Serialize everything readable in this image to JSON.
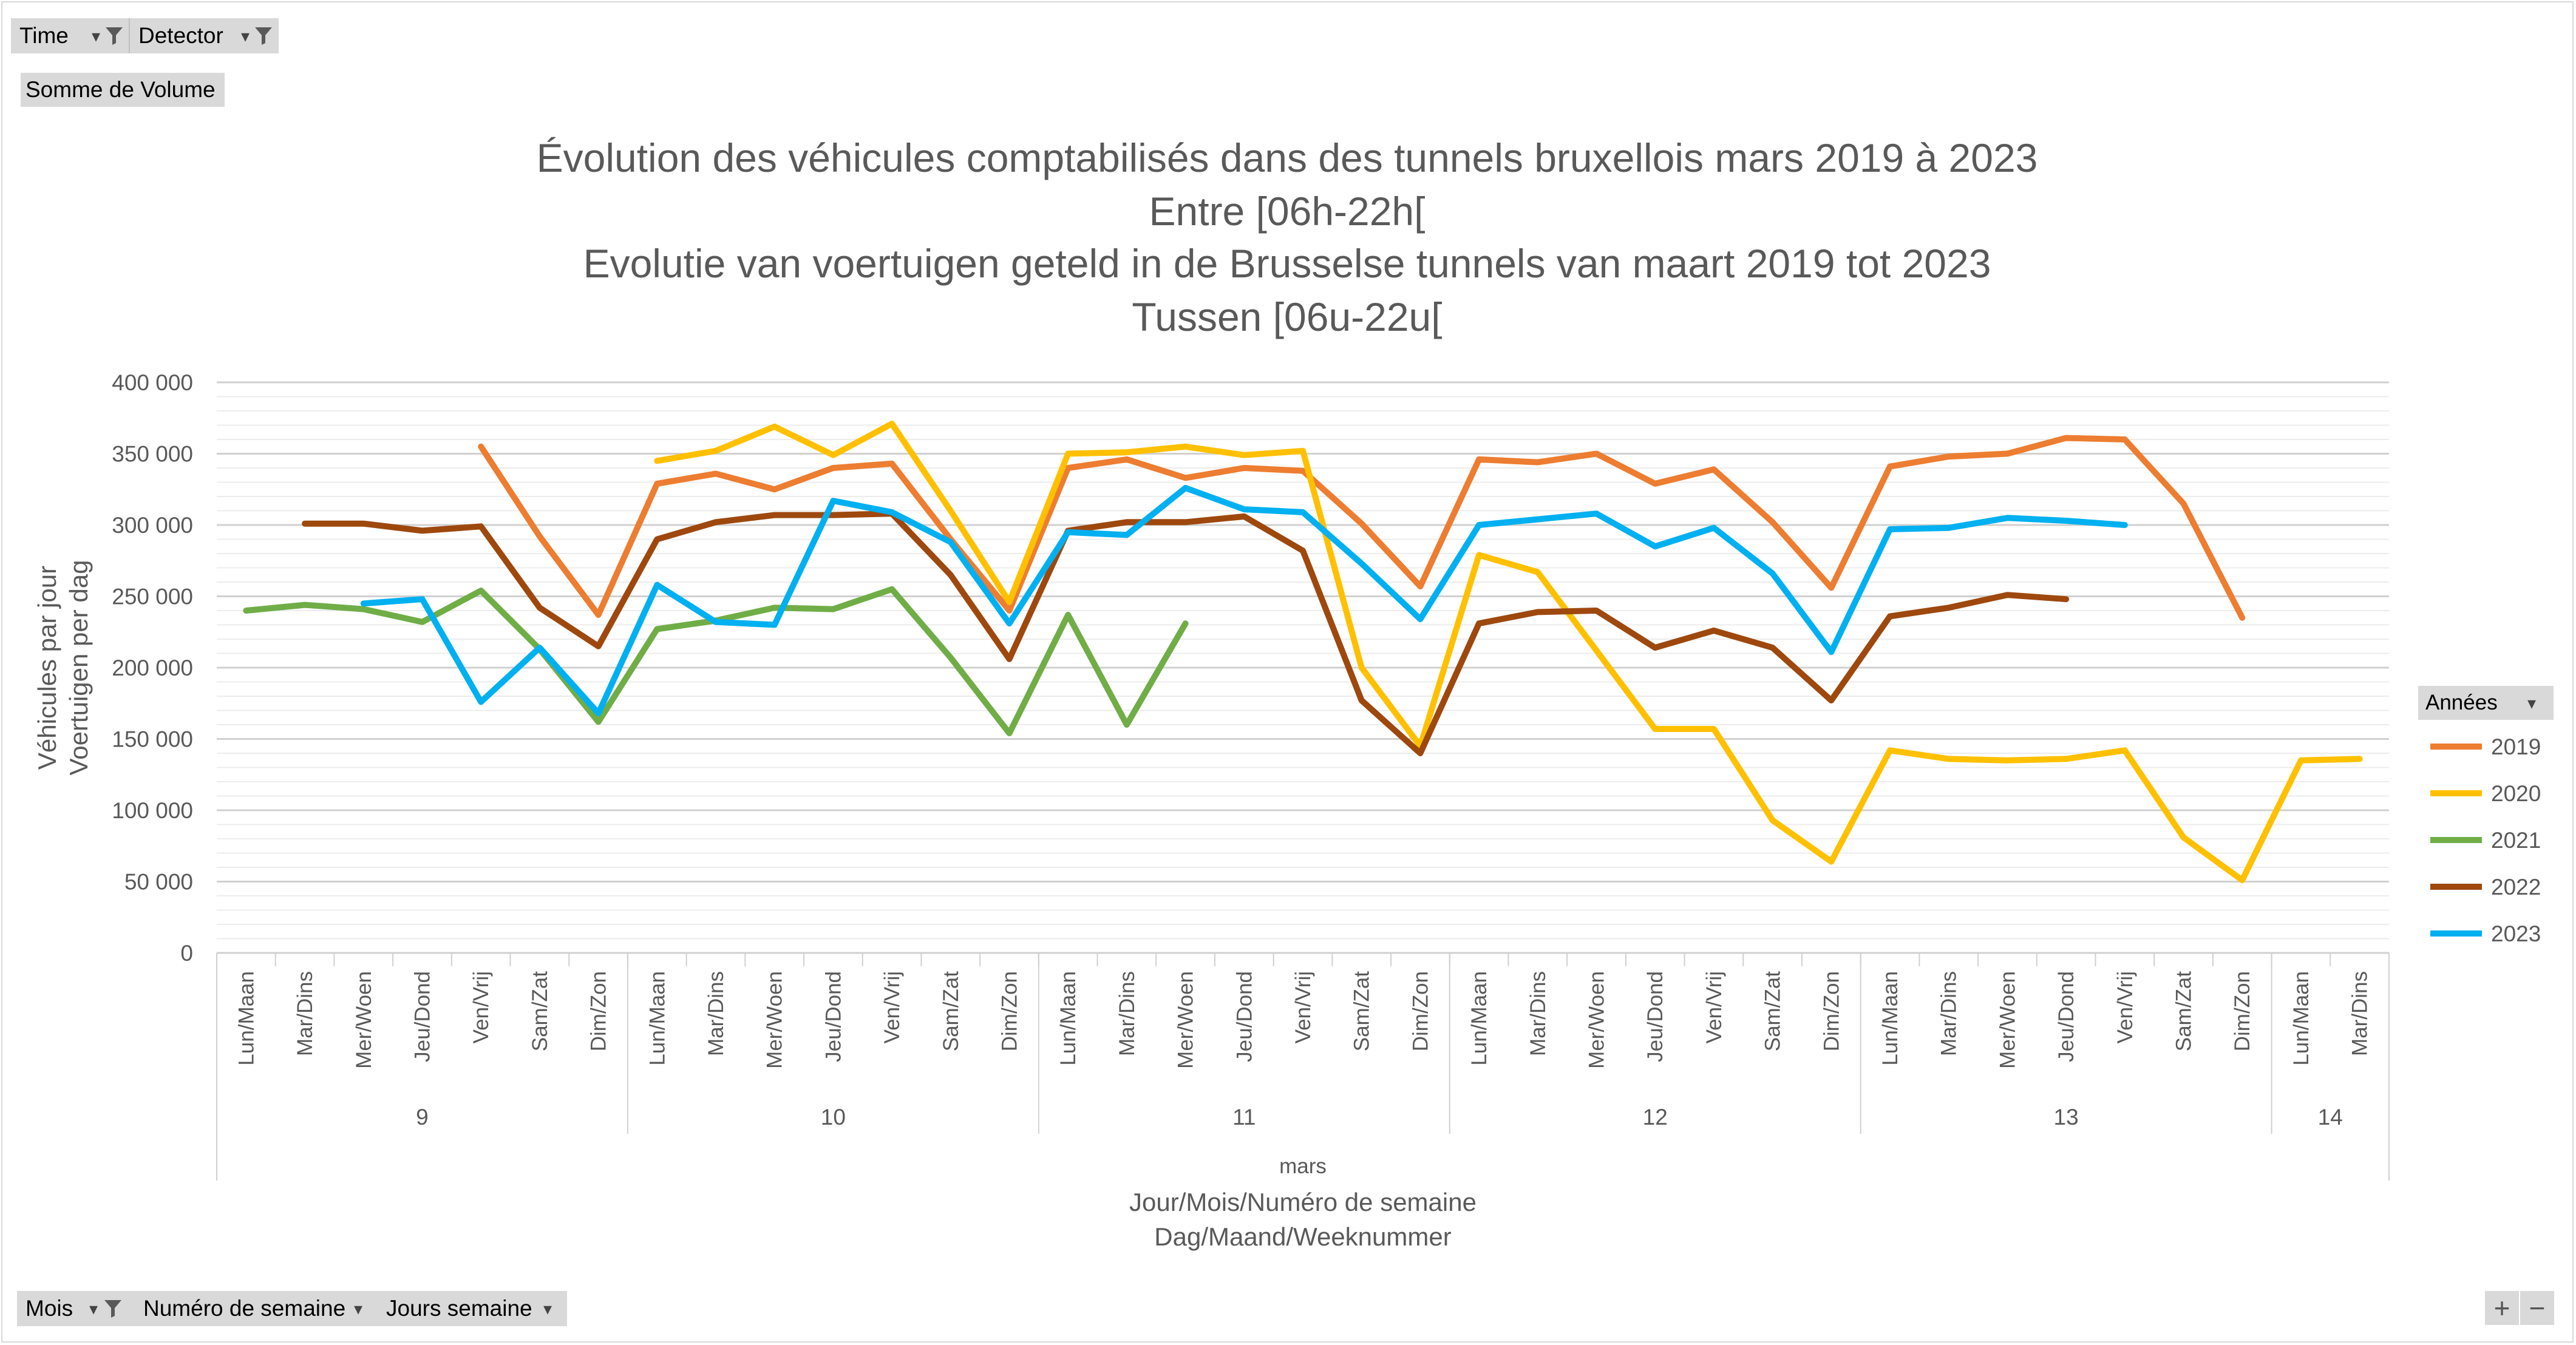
{
  "filters": {
    "time_label": "Time",
    "detector_label": "Detector",
    "value_label": "Somme de Volume",
    "mois_label": "Mois",
    "semaine_label": "Numéro de semaine",
    "jours_label": "Jours semaine",
    "annees_label": "Années",
    "dropdown_glyph": "▾",
    "zoom_in": "+",
    "zoom_out": "−"
  },
  "chart_data": {
    "type": "line",
    "title": [
      "Évolution des véhicules comptabilisés dans des tunnels bruxellois mars 2019 à 2023",
      "Entre [06h-22h[",
      "Evolutie van voertuigen geteld in de Brusselse tunnels van maart 2019 tot 2023",
      "Tussen [06u-22u["
    ],
    "ylabel": [
      "Véhicules par jour",
      "Voertuigen per dag"
    ],
    "xlabel": [
      "Jour/Mois/Numéro de semaine",
      "Dag/Maand/Weeknummer"
    ],
    "ylim": [
      0,
      400000
    ],
    "yticks": [
      0,
      50000,
      100000,
      150000,
      200000,
      250000,
      300000,
      350000,
      400000
    ],
    "ytick_labels": [
      "0",
      "50 000",
      "100 000",
      "150 000",
      "200 000",
      "250 000",
      "300 000",
      "350 000",
      "400 000"
    ],
    "month_label": "mars",
    "categories": [
      "Lun/Maan",
      "Mar/Dins",
      "Mer/Woen",
      "Jeu/Dond",
      "Ven/Vrij",
      "Sam/Zat",
      "Dim/Zon",
      "Lun/Maan",
      "Mar/Dins",
      "Mer/Woen",
      "Jeu/Dond",
      "Ven/Vrij",
      "Sam/Zat",
      "Dim/Zon",
      "Lun/Maan",
      "Mar/Dins",
      "Mer/Woen",
      "Jeu/Dond",
      "Ven/Vrij",
      "Sam/Zat",
      "Dim/Zon",
      "Lun/Maan",
      "Mar/Dins",
      "Mer/Woen",
      "Jeu/Dond",
      "Ven/Vrij",
      "Sam/Zat",
      "Dim/Zon",
      "Lun/Maan",
      "Mar/Dins",
      "Mer/Woen",
      "Jeu/Dond",
      "Ven/Vrij",
      "Sam/Zat",
      "Dim/Zon",
      "Lun/Maan",
      "Mar/Dins"
    ],
    "weeks": [
      {
        "label": "9",
        "start": 0,
        "count": 7
      },
      {
        "label": "10",
        "start": 7,
        "count": 7
      },
      {
        "label": "11",
        "start": 14,
        "count": 7
      },
      {
        "label": "12",
        "start": 21,
        "count": 7
      },
      {
        "label": "13",
        "start": 28,
        "count": 7
      },
      {
        "label": "14",
        "start": 35,
        "count": 2
      }
    ],
    "legend_position": "right",
    "grid": true,
    "series": [
      {
        "name": "2019",
        "color": "#ed7d31",
        "values": [
          null,
          null,
          null,
          null,
          355000,
          292000,
          237000,
          329000,
          336000,
          325000,
          340000,
          343000,
          290000,
          240000,
          340000,
          346000,
          333000,
          340000,
          338000,
          301000,
          257000,
          346000,
          344000,
          350000,
          329000,
          339000,
          302000,
          256000,
          341000,
          348000,
          350000,
          361000,
          360000,
          315000,
          235000,
          null,
          null
        ]
      },
      {
        "name": "2020",
        "color": "#ffc000",
        "values": [
          null,
          null,
          null,
          null,
          null,
          null,
          null,
          345000,
          352000,
          369000,
          349000,
          371000,
          310000,
          246000,
          350000,
          351000,
          355000,
          349000,
          352000,
          200000,
          145000,
          279000,
          267000,
          212000,
          157000,
          157000,
          93000,
          64000,
          142000,
          136000,
          135000,
          136000,
          142000,
          81000,
          51000,
          135000,
          136000
        ]
      },
      {
        "name": "2021",
        "color": "#70ad47",
        "values": [
          240000,
          244000,
          241000,
          232000,
          254000,
          213000,
          162000,
          227000,
          233000,
          242000,
          241000,
          255000,
          207000,
          154000,
          237000,
          160000,
          231000,
          null,
          null,
          null,
          null,
          null,
          null,
          null,
          null,
          null,
          null,
          null,
          null,
          null,
          null,
          null,
          null,
          null,
          null,
          null,
          null
        ]
      },
      {
        "name": "2022",
        "color": "#9e480e",
        "values": [
          null,
          301000,
          301000,
          296000,
          299000,
          242000,
          215000,
          290000,
          302000,
          307000,
          307000,
          308000,
          265000,
          206000,
          296000,
          302000,
          302000,
          306000,
          282000,
          177000,
          140000,
          231000,
          239000,
          240000,
          214000,
          226000,
          214000,
          177000,
          236000,
          242000,
          251000,
          248000,
          null,
          null,
          null,
          null,
          null
        ]
      },
      {
        "name": "2023",
        "color": "#00b0f0",
        "values": [
          null,
          null,
          245000,
          248000,
          176000,
          214000,
          168000,
          258000,
          232000,
          230000,
          317000,
          309000,
          288000,
          231000,
          295000,
          293000,
          326000,
          311000,
          309000,
          273000,
          234000,
          300000,
          304000,
          308000,
          285000,
          298000,
          266000,
          211000,
          297000,
          298000,
          305000,
          303000,
          300000,
          null,
          null,
          null,
          null
        ]
      }
    ]
  }
}
